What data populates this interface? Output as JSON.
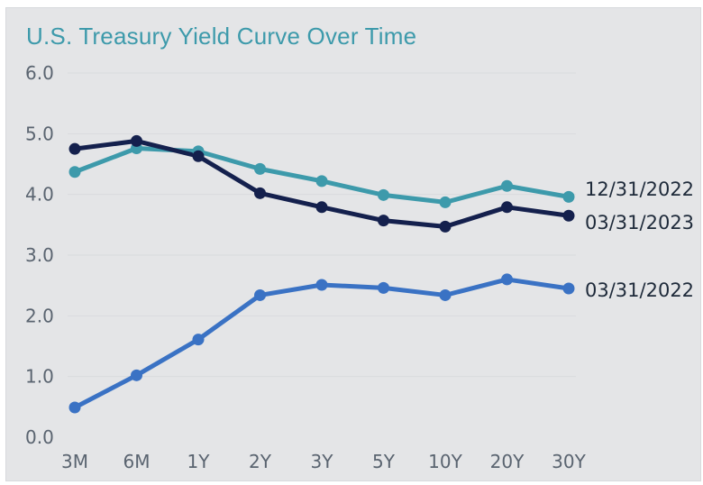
{
  "chart_data": {
    "type": "line",
    "title": "U.S. Treasury Yield Curve Over Time",
    "xlabel": "",
    "ylabel": "",
    "categories": [
      "3M",
      "6M",
      "1Y",
      "2Y",
      "3Y",
      "5Y",
      "10Y",
      "20Y",
      "30Y"
    ],
    "ylim": [
      0,
      6
    ],
    "yticks": [
      "0.0",
      "1.0",
      "2.0",
      "3.0",
      "4.0",
      "5.0",
      "6.0"
    ],
    "grid": false,
    "legend": "series labels at right end of lines",
    "series": [
      {
        "name": "12/31/2022",
        "color": "#3d9aab",
        "values": [
          4.37,
          4.76,
          4.71,
          4.42,
          4.22,
          3.99,
          3.87,
          4.14,
          3.96
        ]
      },
      {
        "name": "03/31/2023",
        "color": "#14204d",
        "values": [
          4.75,
          4.88,
          4.63,
          4.02,
          3.79,
          3.57,
          3.47,
          3.79,
          3.65
        ]
      },
      {
        "name": "03/31/2022",
        "color": "#3a72c4",
        "values": [
          0.49,
          1.02,
          1.61,
          2.34,
          2.51,
          2.46,
          2.34,
          2.6,
          2.45
        ]
      }
    ]
  }
}
